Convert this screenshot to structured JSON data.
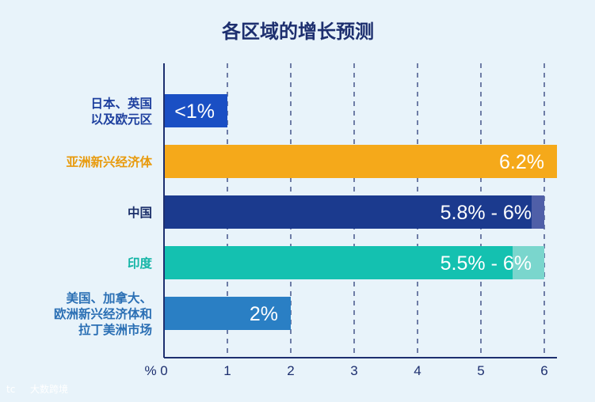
{
  "chart_data": {
    "type": "bar",
    "orientation": "horizontal",
    "title": "各区域的增长预测",
    "xlabel": "%",
    "xlim": [
      0,
      6.2
    ],
    "xticks": [
      0,
      1,
      2,
      3,
      4,
      5,
      6
    ],
    "grid": "vertical-dashed",
    "bars": [
      {
        "category": [
          "日本、英国",
          "以及欧元区"
        ],
        "value": 1,
        "label": "<1%",
        "color": "#1a4fc4",
        "label_color": "#1d3f9e"
      },
      {
        "category": [
          "亚洲新兴经济体"
        ],
        "value": 6.2,
        "label": "6.2%",
        "color": "#f5a91a",
        "label_color": "#e89a0c"
      },
      {
        "category": [
          "中国"
        ],
        "value": 5.8,
        "range_end": 6,
        "label": "5.8% - 6%",
        "color": "#1b3a8e",
        "range_color": "#4f5fa8",
        "label_color": "#1b2f6a"
      },
      {
        "category": [
          "印度"
        ],
        "value": 5.5,
        "range_end": 6,
        "label": "5.5% - 6%",
        "color": "#14c1b0",
        "range_color": "#7ad6cd",
        "label_color": "#14b5a6"
      },
      {
        "category": [
          "美国、加拿大、",
          "欧洲新兴经济体和",
          "拉丁美洲市场"
        ],
        "value": 2,
        "label": "2%",
        "color": "#2a7fc4",
        "label_color": "#2a6fb4"
      }
    ]
  },
  "watermark": {
    "text": "大数跨境",
    "logo_text": "tc"
  }
}
